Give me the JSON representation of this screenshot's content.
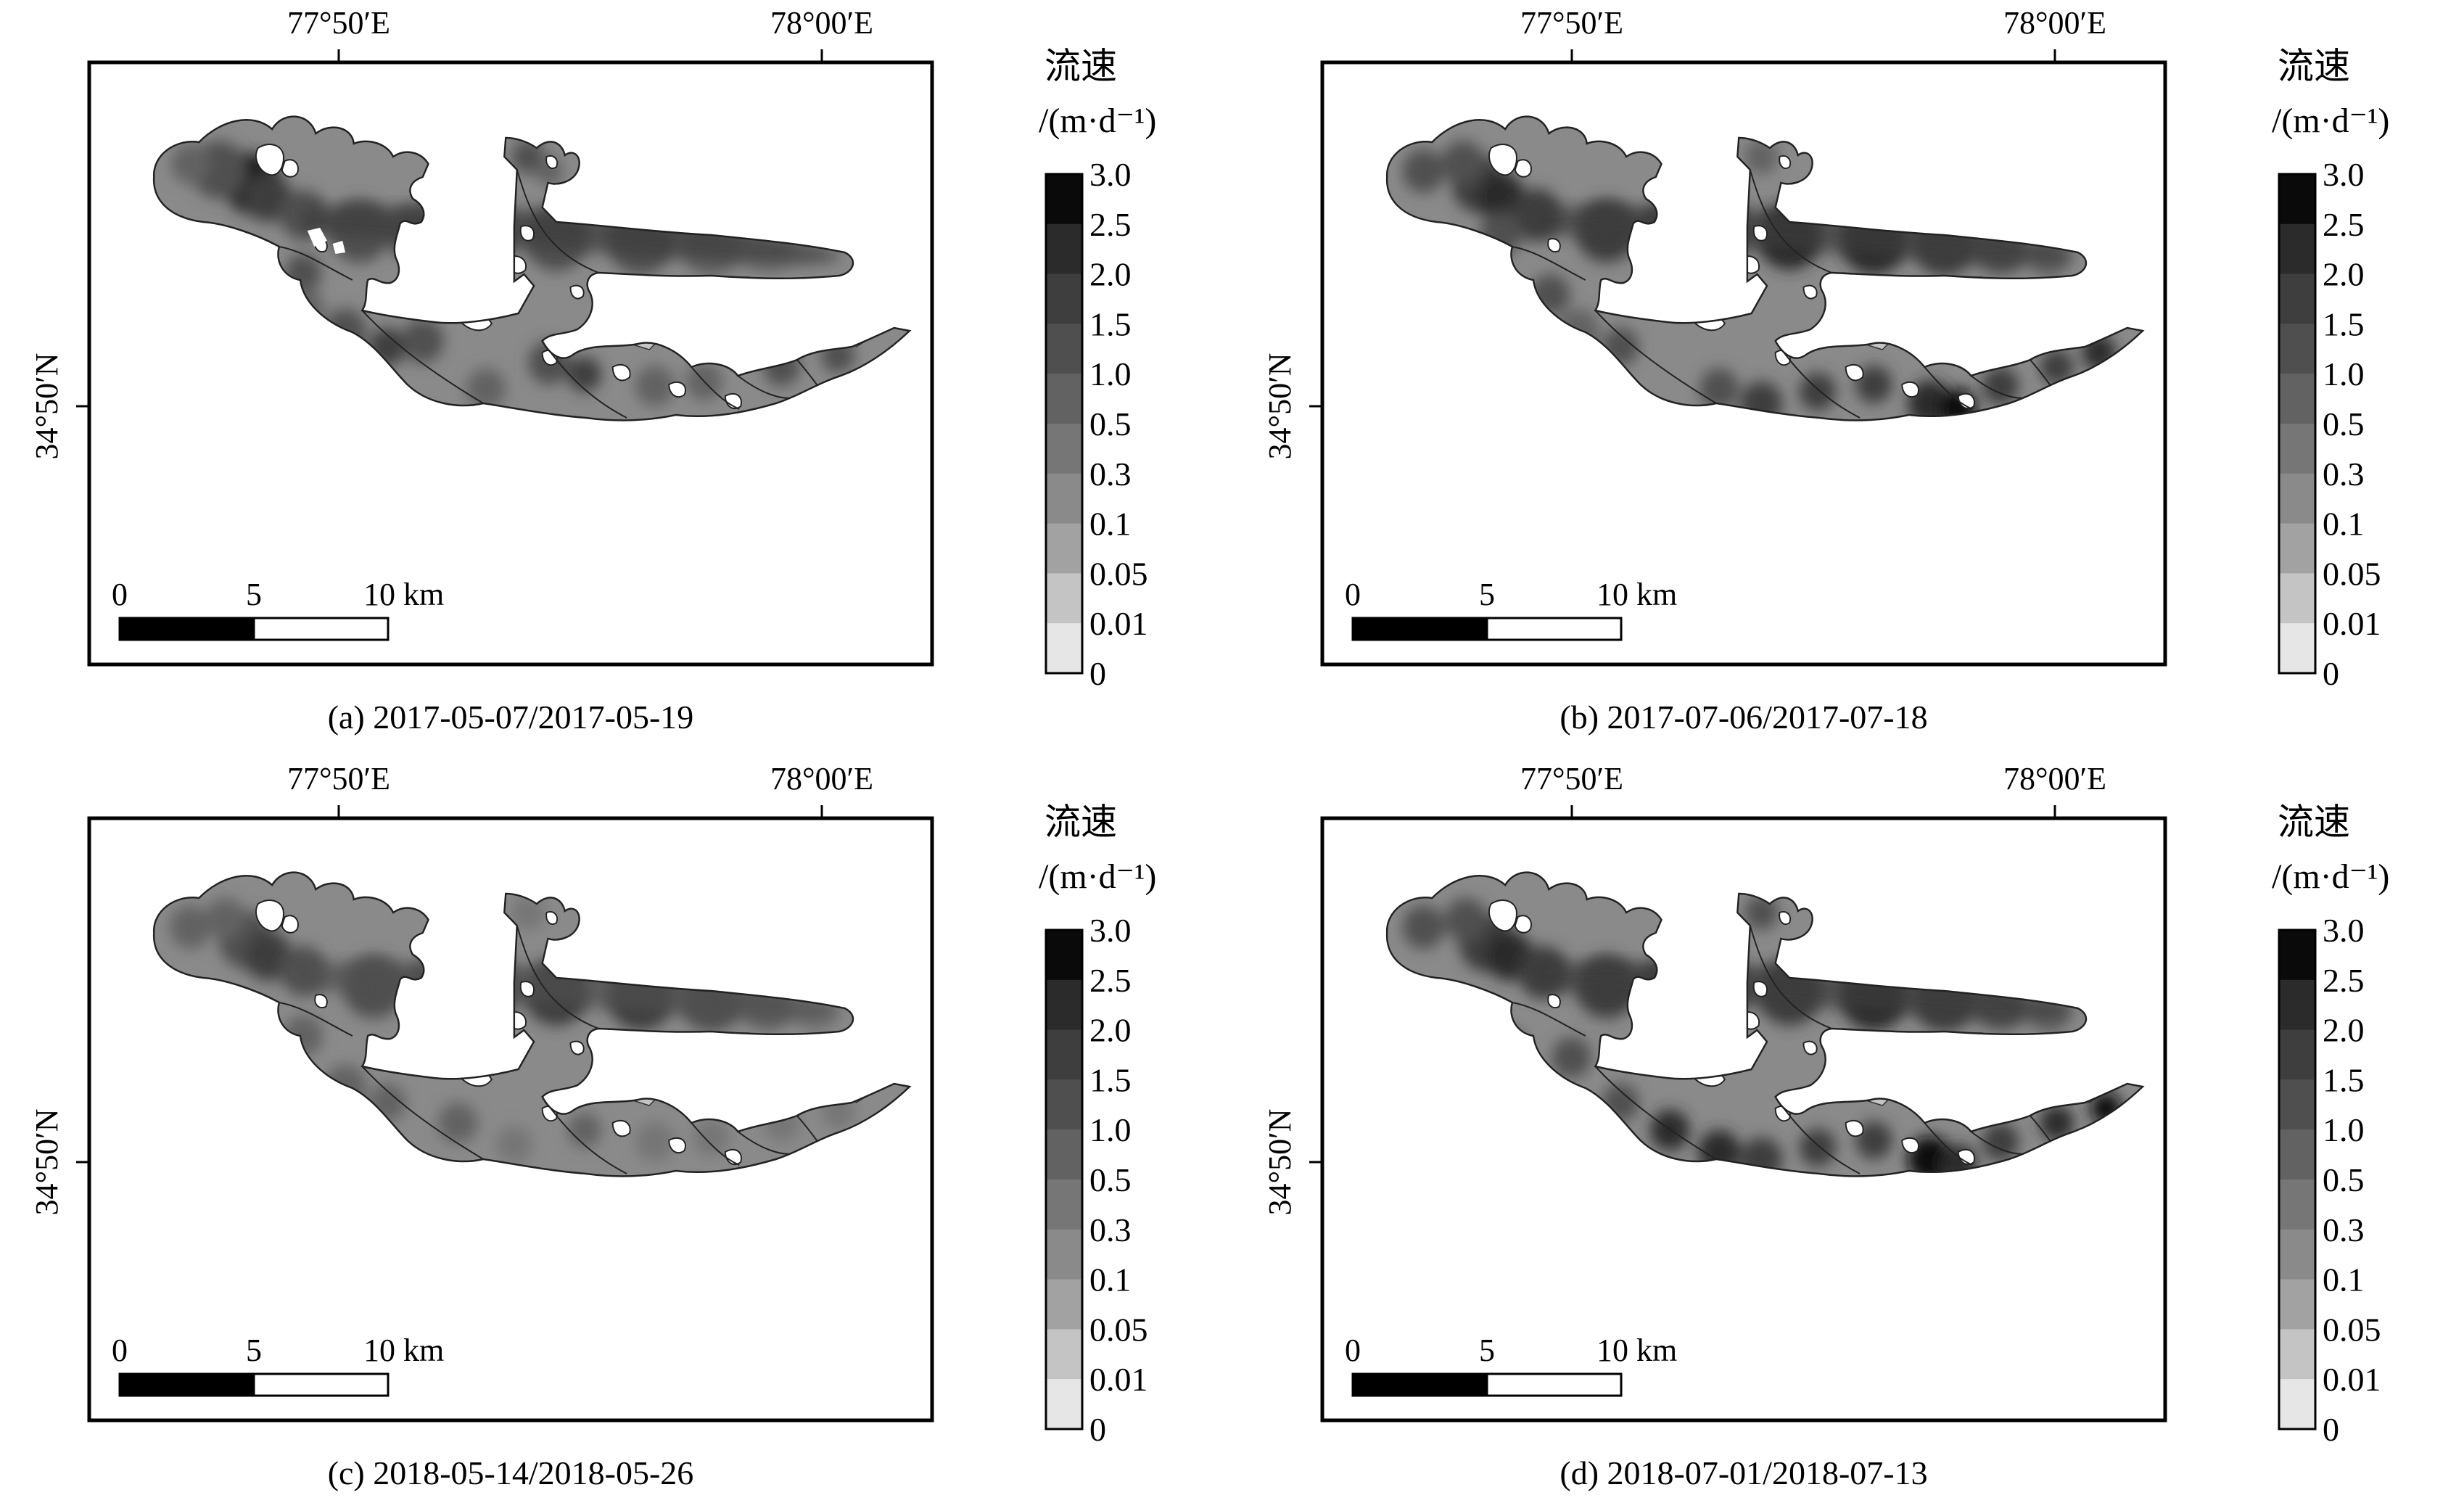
{
  "legend": {
    "title_line1": "流速",
    "title_line2": "/(m·d⁻¹)",
    "classes": [
      {
        "label": "3.0",
        "color": "#0a0a0a"
      },
      {
        "label": "2.5",
        "color": "#2b2b2b"
      },
      {
        "label": "2.0",
        "color": "#3e3e3e"
      },
      {
        "label": "1.5",
        "color": "#4f4f4f"
      },
      {
        "label": "1.0",
        "color": "#626262"
      },
      {
        "label": "0.5",
        "color": "#767676"
      },
      {
        "label": "0.3",
        "color": "#8a8a8a"
      },
      {
        "label": "0.1",
        "color": "#a2a2a2"
      },
      {
        "label": "0.05",
        "color": "#c4c4c4"
      },
      {
        "label": "0.01",
        "color": "#e6e6e6"
      },
      {
        "label": "0",
        "color": "#ffffff"
      }
    ]
  },
  "axes": {
    "lon_ticks": [
      "77°50′E",
      "78°00′E"
    ],
    "lat_tick": "34°50′N"
  },
  "scale_bar": {
    "labels": [
      "0",
      "5",
      "10 km"
    ]
  },
  "panels": [
    {
      "id": "a",
      "caption": "(a) 2017-05-07/2017-05-19"
    },
    {
      "id": "b",
      "caption": "(b) 2017-07-06/2017-07-18"
    },
    {
      "id": "c",
      "caption": "(c) 2018-05-14/2018-05-26"
    },
    {
      "id": "d",
      "caption": "(d) 2018-07-01/2018-07-13"
    }
  ]
}
